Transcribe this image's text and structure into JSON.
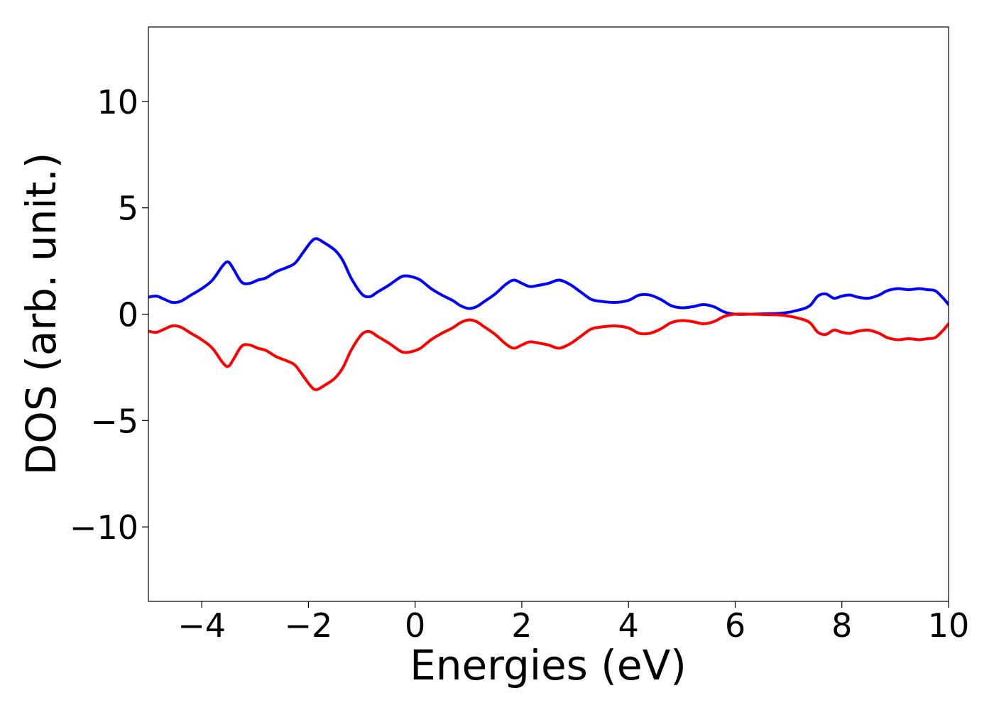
{
  "chart_data": {
    "type": "line",
    "title": "",
    "xlabel": "Energies (eV)",
    "ylabel": "DOS (arb. unit.)",
    "xlim": [
      -5,
      10
    ],
    "ylim": [
      -13.5,
      13.5
    ],
    "xticks": [
      -4,
      -2,
      0,
      2,
      4,
      6,
      8,
      10
    ],
    "xtick_labels": [
      "−4",
      "−2",
      "0",
      "2",
      "4",
      "6",
      "8",
      "10"
    ],
    "yticks": [
      -10,
      -5,
      0,
      5,
      10
    ],
    "ytick_labels": [
      "−10",
      "−5",
      "0",
      "5",
      "10"
    ],
    "grid": false,
    "legend": "none",
    "series": [
      {
        "color": "#0000ff",
        "x": [
          -5.0,
          -4.85,
          -4.7,
          -4.55,
          -4.4,
          -4.2,
          -4.0,
          -3.8,
          -3.6,
          -3.5,
          -3.4,
          -3.25,
          -3.1,
          -2.95,
          -2.8,
          -2.6,
          -2.4,
          -2.25,
          -2.1,
          -1.95,
          -1.85,
          -1.7,
          -1.5,
          -1.35,
          -1.2,
          -1.0,
          -0.85,
          -0.7,
          -0.5,
          -0.3,
          -0.2,
          -0.05,
          0.1,
          0.3,
          0.5,
          0.7,
          0.85,
          1.0,
          1.15,
          1.3,
          1.5,
          1.7,
          1.85,
          2.0,
          2.15,
          2.3,
          2.5,
          2.7,
          2.9,
          3.1,
          3.3,
          3.5,
          3.75,
          4.0,
          4.2,
          4.4,
          4.6,
          4.8,
          5.0,
          5.2,
          5.4,
          5.6,
          5.8,
          6.0,
          6.3,
          6.6,
          6.9,
          7.2,
          7.4,
          7.55,
          7.7,
          7.85,
          8.0,
          8.15,
          8.3,
          8.5,
          8.7,
          8.85,
          9.05,
          9.25,
          9.45,
          9.6,
          9.75,
          9.9,
          10.0
        ],
        "y": [
          0.8,
          0.85,
          0.7,
          0.55,
          0.6,
          0.9,
          1.2,
          1.6,
          2.3,
          2.45,
          2.1,
          1.5,
          1.45,
          1.6,
          1.7,
          2.0,
          2.2,
          2.4,
          2.9,
          3.4,
          3.55,
          3.35,
          3.0,
          2.5,
          1.7,
          0.95,
          0.82,
          1.05,
          1.35,
          1.7,
          1.8,
          1.75,
          1.6,
          1.2,
          0.9,
          0.65,
          0.4,
          0.27,
          0.35,
          0.6,
          0.95,
          1.4,
          1.6,
          1.45,
          1.3,
          1.35,
          1.45,
          1.6,
          1.4,
          1.05,
          0.7,
          0.6,
          0.55,
          0.65,
          0.9,
          0.9,
          0.7,
          0.4,
          0.3,
          0.35,
          0.45,
          0.35,
          0.1,
          0.0,
          0.0,
          0.02,
          0.05,
          0.2,
          0.4,
          0.85,
          0.95,
          0.75,
          0.85,
          0.9,
          0.8,
          0.75,
          0.9,
          1.1,
          1.2,
          1.15,
          1.2,
          1.15,
          1.1,
          0.75,
          0.45
        ]
      },
      {
        "color": "#ff0000",
        "x": [
          -5.0,
          -4.85,
          -4.7,
          -4.55,
          -4.4,
          -4.2,
          -4.0,
          -3.8,
          -3.6,
          -3.5,
          -3.4,
          -3.25,
          -3.1,
          -2.95,
          -2.8,
          -2.6,
          -2.4,
          -2.25,
          -2.1,
          -1.95,
          -1.85,
          -1.7,
          -1.5,
          -1.35,
          -1.2,
          -1.0,
          -0.85,
          -0.7,
          -0.5,
          -0.3,
          -0.2,
          -0.05,
          0.1,
          0.3,
          0.5,
          0.7,
          0.85,
          1.0,
          1.15,
          1.3,
          1.5,
          1.7,
          1.85,
          2.0,
          2.15,
          2.3,
          2.5,
          2.7,
          2.9,
          3.1,
          3.3,
          3.5,
          3.75,
          4.0,
          4.2,
          4.4,
          4.6,
          4.8,
          5.0,
          5.2,
          5.4,
          5.6,
          5.8,
          6.0,
          6.3,
          6.6,
          6.9,
          7.2,
          7.4,
          7.55,
          7.7,
          7.85,
          8.0,
          8.15,
          8.3,
          8.5,
          8.7,
          8.85,
          9.05,
          9.25,
          9.45,
          9.6,
          9.75,
          9.9,
          10.0
        ],
        "y": [
          -0.8,
          -0.85,
          -0.7,
          -0.55,
          -0.6,
          -0.9,
          -1.2,
          -1.6,
          -2.3,
          -2.45,
          -2.1,
          -1.5,
          -1.45,
          -1.6,
          -1.7,
          -2.0,
          -2.2,
          -2.4,
          -2.9,
          -3.4,
          -3.55,
          -3.35,
          -3.0,
          -2.5,
          -1.7,
          -0.95,
          -0.82,
          -1.05,
          -1.35,
          -1.7,
          -1.8,
          -1.75,
          -1.6,
          -1.2,
          -0.9,
          -0.65,
          -0.4,
          -0.27,
          -0.35,
          -0.6,
          -0.95,
          -1.4,
          -1.6,
          -1.45,
          -1.3,
          -1.35,
          -1.45,
          -1.6,
          -1.4,
          -1.05,
          -0.7,
          -0.6,
          -0.55,
          -0.65,
          -0.9,
          -0.9,
          -0.7,
          -0.4,
          -0.3,
          -0.35,
          -0.45,
          -0.35,
          -0.1,
          0.0,
          0.0,
          -0.02,
          -0.05,
          -0.2,
          -0.4,
          -0.85,
          -0.95,
          -0.75,
          -0.85,
          -0.9,
          -0.8,
          -0.75,
          -0.9,
          -1.1,
          -1.2,
          -1.15,
          -1.2,
          -1.15,
          -1.1,
          -0.75,
          -0.45
        ]
      }
    ]
  }
}
